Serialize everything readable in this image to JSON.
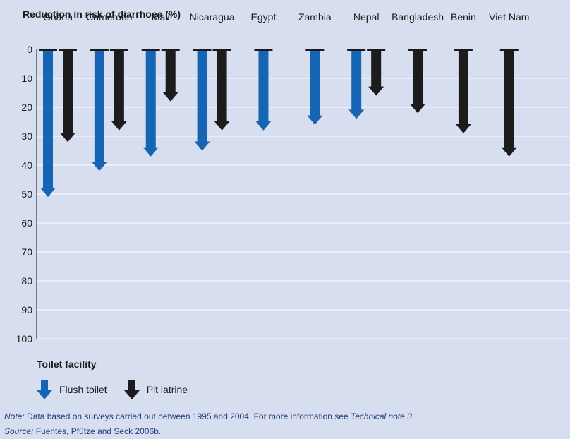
{
  "colors": {
    "flush": "#1665b5",
    "pit": "#1c1c1c",
    "background": "#d6deef",
    "grid": "#ffffff"
  },
  "legend": {
    "title": "Toilet facility",
    "items": [
      {
        "label": "Flush toilet",
        "icon": "flush-arrow-icon"
      },
      {
        "label": "Pit latrine",
        "icon": "pit-arrow-icon"
      }
    ]
  },
  "notes": {
    "note_label": "Note:",
    "note_text": " Data based on surveys carried out between 1995 and 2004. For more information see ",
    "note_link": "Technical note 3",
    "note_end": ".",
    "source_label": "Source:",
    "source_text": " Fuentes, Pfütze and Seck 2006b."
  },
  "chart_data": {
    "type": "bar",
    "title": "",
    "ylabel": "Reduction in risk of diarrhoea (%)",
    "xlabel": "",
    "ylim": [
      0,
      100
    ],
    "yticks": [
      0,
      10,
      20,
      30,
      40,
      50,
      60,
      70,
      80,
      90,
      100
    ],
    "grid": true,
    "legend_position": "bottom-left",
    "categories": [
      "Ghana",
      "Cameroon",
      "Mali",
      "Nicaragua",
      "Egypt",
      "Zambia",
      "Nepal",
      "Bangladesh",
      "Benin",
      "Viet Nam"
    ],
    "series": [
      {
        "name": "Flush toilet",
        "values": [
          51,
          42,
          37,
          35,
          28,
          26,
          24,
          null,
          null,
          null
        ]
      },
      {
        "name": "Pit latrine",
        "values": [
          32,
          28,
          18,
          28,
          null,
          null,
          16,
          22,
          29,
          37
        ]
      }
    ]
  }
}
